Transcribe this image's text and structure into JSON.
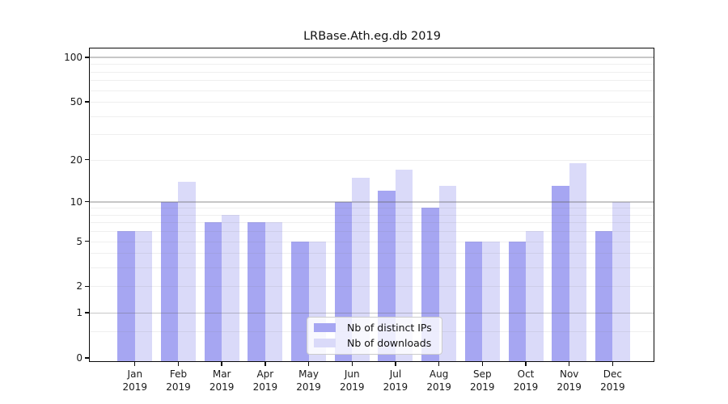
{
  "chart_data": {
    "type": "bar",
    "title": "LRBase.Ath.eg.db 2019",
    "categories": [
      "Jan",
      "Feb",
      "Mar",
      "Apr",
      "May",
      "Jun",
      "Jul",
      "Aug",
      "Sep",
      "Oct",
      "Nov",
      "Dec"
    ],
    "year_label": "2019",
    "series": [
      {
        "name": "Nb of distinct IPs",
        "color": "#a6a6f2",
        "values": [
          6,
          10,
          7,
          7,
          5,
          10,
          12,
          9,
          5,
          5,
          13,
          6
        ]
      },
      {
        "name": "Nb of downloads",
        "color": "#dadaf9",
        "values": [
          6,
          14,
          8,
          7,
          5,
          15,
          17,
          13,
          5,
          6,
          19,
          10
        ]
      }
    ],
    "y_axis": {
      "scale": "log1p",
      "ticks": [
        0,
        1,
        2,
        5,
        10,
        20,
        50,
        100
      ],
      "major_gridlines": [
        1,
        10,
        100
      ],
      "minor_gridlines": [
        0.5,
        2,
        3,
        4,
        5,
        6,
        7,
        8,
        9,
        20,
        30,
        40,
        50,
        60,
        70,
        80,
        90
      ],
      "ylim": [
        0,
        115
      ]
    },
    "legend_position": "lower-center",
    "grid": "on"
  }
}
